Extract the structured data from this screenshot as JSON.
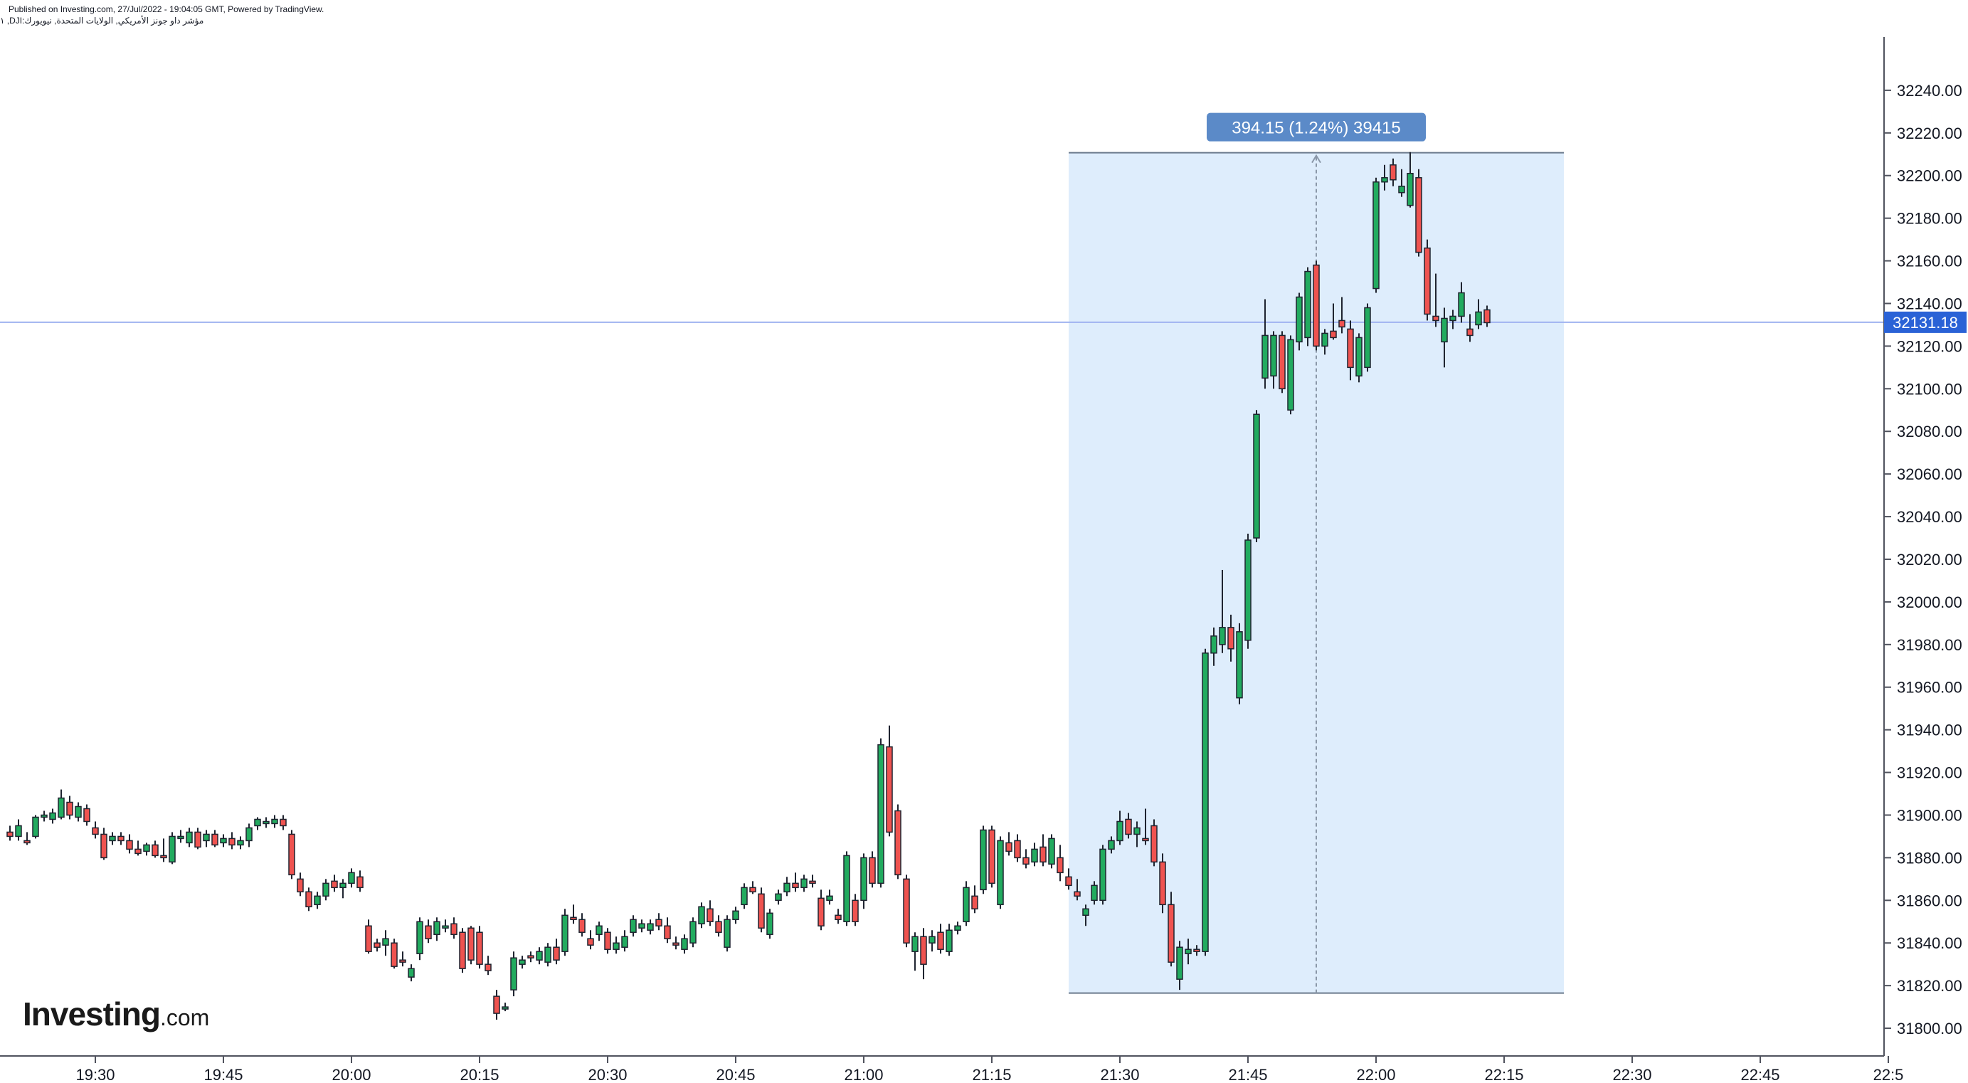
{
  "header": {
    "published_line": "Published on Investing.com, 27/Jul/2022 - 19:04:05 GMT, Powered by TradingView.",
    "symbol_line": "مؤشر داو جونز الأمريكي, الولايات المتحدة, نيويورك:DJI, ١"
  },
  "logo": {
    "brand": "Investing",
    "domain": ".com"
  },
  "colors": {
    "up": "#26a69a",
    "up_fill": "#22ab5f",
    "down": "#ef5350",
    "range_fill": "#deedfc",
    "range_border": "#6b7a8c",
    "badge_bg": "#5b8ac8",
    "price_line": "#9fb3f0",
    "price_label_bg": "#2a62d6"
  },
  "chart_data": {
    "type": "candlestick",
    "interval_minutes": 1,
    "x_start": "19:20",
    "ylim": [
      31787,
      32265
    ],
    "y_ticks": [
      "31800.00",
      "31820.00",
      "31840.00",
      "31860.00",
      "31880.00",
      "31900.00",
      "31920.00",
      "31940.00",
      "31960.00",
      "31980.00",
      "32000.00",
      "32020.00",
      "32040.00",
      "32060.00",
      "32080.00",
      "32100.00",
      "32120.00",
      "32140.00",
      "32160.00",
      "32180.00",
      "32200.00",
      "32220.00",
      "32240.00"
    ],
    "x_ticks": [
      "19:30",
      "19:45",
      "20:00",
      "20:15",
      "20:30",
      "20:45",
      "21:00",
      "21:15",
      "21:30",
      "21:45",
      "22:00",
      "22:15",
      "22:30",
      "22:45",
      "22:5"
    ],
    "last_price_label": "32131.18",
    "last_price": 32131.18,
    "measure": {
      "label": "394.15 (1.24%) 39415",
      "start_time": "21:24",
      "end_time": "22:22",
      "low": 31816.5,
      "high": 32210.7
    },
    "candles": [
      [
        31892,
        31895,
        31888,
        31890
      ],
      [
        31890,
        31898,
        31888,
        31895
      ],
      [
        31888,
        31892,
        31886,
        31887
      ],
      [
        31890,
        31900,
        31889,
        31899
      ],
      [
        31899,
        31902,
        31897,
        31900
      ],
      [
        31898,
        31903,
        31896,
        31901
      ],
      [
        31899,
        31912,
        31898,
        31908
      ],
      [
        31906,
        31909,
        31898,
        31900
      ],
      [
        31899,
        31906,
        31897,
        31904
      ],
      [
        31903,
        31905,
        31895,
        31897
      ],
      [
        31894,
        31897,
        31889,
        31891
      ],
      [
        31891,
        31894,
        31879,
        31880
      ],
      [
        31888,
        31892,
        31886,
        31890
      ],
      [
        31890,
        31892,
        31886,
        31888
      ],
      [
        31888,
        31891,
        31882,
        31884
      ],
      [
        31884,
        31888,
        31881,
        31882
      ],
      [
        31883,
        31887,
        31881,
        31886
      ],
      [
        31886,
        31888,
        31880,
        31881
      ],
      [
        31881,
        31889,
        31878,
        31880
      ],
      [
        31878,
        31892,
        31877,
        31890
      ],
      [
        31889,
        31893,
        31887,
        31890
      ],
      [
        31887,
        31894,
        31885,
        31892
      ],
      [
        31892,
        31894,
        31884,
        31885
      ],
      [
        31888,
        31893,
        31885,
        31891
      ],
      [
        31891,
        31893,
        31885,
        31886
      ],
      [
        31887,
        31891,
        31885,
        31889
      ],
      [
        31889,
        31892,
        31884,
        31886
      ],
      [
        31886,
        31890,
        31884,
        31888
      ],
      [
        31888,
        31896,
        31885,
        31894
      ],
      [
        31895,
        31899,
        31893,
        31898
      ],
      [
        31896,
        31899,
        31894,
        31897
      ],
      [
        31896,
        31900,
        31894,
        31898
      ],
      [
        31898,
        31900,
        31893,
        31895
      ],
      [
        31891,
        31893,
        31870,
        31872
      ],
      [
        31870,
        31873,
        31862,
        31864
      ],
      [
        31864,
        31866,
        31855,
        31857
      ],
      [
        31858,
        31864,
        31856,
        31862
      ],
      [
        31862,
        31870,
        31860,
        31868
      ],
      [
        31869,
        31872,
        31864,
        31866
      ],
      [
        31866,
        31870,
        31861,
        31868
      ],
      [
        31868,
        31875,
        31866,
        31873
      ],
      [
        31871,
        31874,
        31864,
        31866
      ],
      [
        31848,
        31851,
        31835,
        31836
      ],
      [
        31840,
        31842,
        31836,
        31838
      ],
      [
        31839,
        31846,
        31834,
        31842
      ],
      [
        31840,
        31842,
        31828,
        31829
      ],
      [
        31832,
        31836,
        31829,
        31831
      ],
      [
        31824,
        31830,
        31822,
        31828
      ],
      [
        31835,
        31852,
        31832,
        31850
      ],
      [
        31848,
        31851,
        31840,
        31842
      ],
      [
        31844,
        31852,
        31841,
        31850
      ],
      [
        31847,
        31851,
        31845,
        31848
      ],
      [
        31849,
        31852,
        31842,
        31844
      ],
      [
        31845,
        31847,
        31826,
        31828
      ],
      [
        31847,
        31848,
        31830,
        31832
      ],
      [
        31845,
        31848,
        31828,
        31830
      ],
      [
        31830,
        31834,
        31825,
        31827
      ],
      [
        31815,
        31818,
        31804,
        31807
      ],
      [
        31809,
        31812,
        31808,
        31810
      ],
      [
        31818,
        31836,
        31815,
        31833
      ],
      [
        31830,
        31834,
        31828,
        31832
      ],
      [
        31834,
        31836,
        31831,
        31833
      ],
      [
        31832,
        31838,
        31830,
        31836
      ],
      [
        31831,
        31840,
        31829,
        31838
      ],
      [
        31838,
        31842,
        31830,
        31832
      ],
      [
        31836,
        31856,
        31834,
        31853
      ],
      [
        31852,
        31858,
        31849,
        31851
      ],
      [
        31851,
        31854,
        31843,
        31845
      ],
      [
        31842,
        31846,
        31837,
        31839
      ],
      [
        31844,
        31850,
        31841,
        31848
      ],
      [
        31845,
        31847,
        31835,
        31837
      ],
      [
        31837,
        31843,
        31835,
        31840
      ],
      [
        31838,
        31846,
        31836,
        31843
      ],
      [
        31845,
        31853,
        31843,
        31851
      ],
      [
        31847,
        31851,
        31845,
        31849
      ],
      [
        31846,
        31851,
        31844,
        31849
      ],
      [
        31851,
        31854,
        31846,
        31848
      ],
      [
        31848,
        31852,
        31840,
        31842
      ],
      [
        31840,
        31843,
        31837,
        31839
      ],
      [
        31837,
        31844,
        31835,
        31842
      ],
      [
        31840,
        31852,
        31838,
        31850
      ],
      [
        31849,
        31859,
        31847,
        31857
      ],
      [
        31856,
        31860,
        31848,
        31850
      ],
      [
        31850,
        31853,
        31843,
        31845
      ],
      [
        31838,
        31853,
        31836,
        31851
      ],
      [
        31851,
        31857,
        31849,
        31855
      ],
      [
        31858,
        31868,
        31856,
        31866
      ],
      [
        31866,
        31869,
        31863,
        31864
      ],
      [
        31863,
        31866,
        31845,
        31847
      ],
      [
        31844,
        31856,
        31842,
        31854
      ],
      [
        31860,
        31865,
        31858,
        31863
      ],
      [
        31864,
        31871,
        31862,
        31868
      ],
      [
        31868,
        31873,
        31864,
        31866
      ],
      [
        31866,
        31872,
        31864,
        31870
      ],
      [
        31869,
        31872,
        31866,
        31868
      ],
      [
        31861,
        31865,
        31846,
        31848
      ],
      [
        31860,
        31865,
        31858,
        31862
      ],
      [
        31853,
        31856,
        31849,
        31851
      ],
      [
        31850,
        31883,
        31848,
        31881
      ],
      [
        31860,
        31863,
        31848,
        31850
      ],
      [
        31860,
        31882,
        31856,
        31880
      ],
      [
        31880,
        31883,
        31866,
        31868
      ],
      [
        31868,
        31936,
        31866,
        31933
      ],
      [
        31932,
        31942,
        31890,
        31892
      ],
      [
        31902,
        31905,
        31870,
        31872
      ],
      [
        31870,
        31872,
        31838,
        31840
      ],
      [
        31836,
        31845,
        31827,
        31843
      ],
      [
        31843,
        31847,
        31823,
        31830
      ],
      [
        31840,
        31846,
        31836,
        31843
      ],
      [
        31845,
        31849,
        31835,
        31837
      ],
      [
        31836,
        31849,
        31834,
        31846
      ],
      [
        31846,
        31850,
        31844,
        31848
      ],
      [
        31850,
        31869,
        31848,
        31866
      ],
      [
        31862,
        31867,
        31854,
        31856
      ],
      [
        31865,
        31895,
        31863,
        31893
      ],
      [
        31893,
        31895,
        31866,
        31868
      ],
      [
        31858,
        31890,
        31856,
        31888
      ],
      [
        31887,
        31892,
        31881,
        31883
      ],
      [
        31888,
        31891,
        31878,
        31880
      ],
      [
        31880,
        31884,
        31875,
        31877
      ],
      [
        31878,
        31887,
        31876,
        31884
      ],
      [
        31885,
        31891,
        31876,
        31878
      ],
      [
        31877,
        31891,
        31875,
        31889
      ],
      [
        31880,
        31886,
        31869,
        31873
      ],
      [
        31871,
        31875,
        31865,
        31867
      ],
      [
        31864,
        31870,
        31860,
        31862
      ],
      [
        31853,
        31858,
        31848,
        31856
      ],
      [
        31860,
        31869,
        31858,
        31867
      ],
      [
        31860,
        31886,
        31858,
        31884
      ],
      [
        31884,
        31890,
        31882,
        31888
      ],
      [
        31888,
        31902,
        31886,
        31897
      ],
      [
        31898,
        31901,
        31889,
        31891
      ],
      [
        31891,
        31897,
        31885,
        31894
      ],
      [
        31889,
        31903,
        31886,
        31888
      ],
      [
        31895,
        31898,
        31876,
        31878
      ],
      [
        31878,
        31882,
        31854,
        31858
      ],
      [
        31858,
        31864,
        31829,
        31831
      ],
      [
        31823,
        31841,
        31818,
        31838
      ],
      [
        31835,
        31842,
        31830,
        31837
      ],
      [
        31837,
        31839,
        31834,
        31836
      ],
      [
        31836,
        31978,
        31834,
        31976
      ],
      [
        31976,
        31988,
        31970,
        31984
      ],
      [
        31980,
        32015,
        31976,
        31988
      ],
      [
        31988,
        31994,
        31972,
        31978
      ],
      [
        31955,
        31990,
        31952,
        31986
      ],
      [
        31982,
        32032,
        31978,
        32029
      ],
      [
        32030,
        32090,
        32028,
        32088
      ],
      [
        32105,
        32142,
        32100,
        32125
      ],
      [
        32106,
        32127,
        32100,
        32125
      ],
      [
        32125,
        32127,
        32098,
        32100
      ],
      [
        32090,
        32125,
        32088,
        32123
      ],
      [
        32122,
        32145,
        32118,
        32143
      ],
      [
        32124,
        32157,
        32120,
        32155
      ],
      [
        32158,
        32160,
        32118,
        32120
      ],
      [
        32120,
        32128,
        32116,
        32126
      ],
      [
        32127,
        32140,
        32123,
        32124
      ],
      [
        32132,
        32143,
        32126,
        32129
      ],
      [
        32128,
        32132,
        32104,
        32110
      ],
      [
        32106,
        32126,
        32103,
        32124
      ],
      [
        32110,
        32140,
        32108,
        32138
      ],
      [
        32147,
        32199,
        32145,
        32197
      ],
      [
        32197,
        32205,
        32193,
        32199
      ],
      [
        32205,
        32208,
        32195,
        32198
      ],
      [
        32192,
        32203,
        32190,
        32195
      ],
      [
        32186,
        32211,
        32185,
        32201
      ],
      [
        32199,
        32203,
        32162,
        32164
      ],
      [
        32166,
        32170,
        32132,
        32135
      ],
      [
        32134,
        32154,
        32129,
        32132
      ],
      [
        32122,
        32138,
        32110,
        32133
      ],
      [
        32132,
        32137,
        32128,
        32134
      ],
      [
        32134,
        32150,
        32131,
        32145
      ],
      [
        32128,
        32135,
        32122,
        32125
      ],
      [
        32130,
        32142,
        32128,
        32136
      ],
      [
        32137,
        32139,
        32129,
        32131
      ]
    ]
  }
}
